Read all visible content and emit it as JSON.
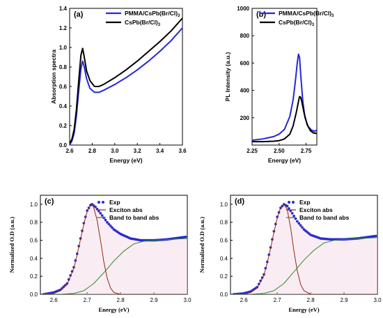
{
  "panels": [
    {
      "label": "(a)",
      "type": "line",
      "xlabel": "Energy (eV)",
      "ylabel": "Absorption spectra",
      "xlim": [
        2.6,
        3.6
      ],
      "ylim": [
        0.0,
        1.4
      ],
      "xticks": [
        "2.6",
        "2.8",
        "3.0",
        "3.2",
        "3.4",
        "3.6"
      ],
      "yticks": [
        "0.0",
        "0.2",
        "0.4",
        "0.6",
        "0.8",
        "1.0",
        "1.2",
        "1.4"
      ],
      "legend": [
        {
          "text": "PMMA/CsPb(Br/Cl)",
          "sub": "3",
          "color": "#2626d9"
        },
        {
          "text": "CsPb(Br/Cl)",
          "sub": "3",
          "color": "#000000"
        }
      ],
      "series": [
        {
          "name": "PMMA/CsPb(Br/Cl)3",
          "color": "#2626d9",
          "x": [
            2.6,
            2.62,
            2.64,
            2.66,
            2.68,
            2.7,
            2.715,
            2.73,
            2.75,
            2.78,
            2.82,
            2.86,
            2.9,
            3.0,
            3.1,
            3.2,
            3.3,
            3.4,
            3.5,
            3.6
          ],
          "y": [
            0.0,
            0.04,
            0.12,
            0.3,
            0.55,
            0.78,
            0.86,
            0.8,
            0.68,
            0.58,
            0.54,
            0.54,
            0.56,
            0.62,
            0.69,
            0.77,
            0.86,
            0.96,
            1.07,
            1.2
          ]
        },
        {
          "name": "CsPb(Br/Cl)3",
          "color": "#000000",
          "x": [
            2.6,
            2.62,
            2.64,
            2.66,
            2.68,
            2.7,
            2.715,
            2.73,
            2.75,
            2.78,
            2.82,
            2.86,
            2.9,
            3.0,
            3.1,
            3.2,
            3.3,
            3.4,
            3.5,
            3.6
          ],
          "y": [
            0.02,
            0.06,
            0.16,
            0.36,
            0.65,
            0.92,
            0.99,
            0.9,
            0.76,
            0.66,
            0.6,
            0.6,
            0.62,
            0.69,
            0.77,
            0.86,
            0.96,
            1.06,
            1.17,
            1.3
          ]
        }
      ]
    },
    {
      "label": "(b)",
      "type": "line",
      "xlabel": "Energy (eV)",
      "ylabel": "PL Intensity (a.u.)",
      "xlim": [
        2.25,
        2.85
      ],
      "ylim": [
        0,
        1000
      ],
      "xticks": [
        "2.25",
        "2.50",
        "2.75"
      ],
      "xtick_values": [
        2.25,
        2.5,
        2.75
      ],
      "yticks": [
        "200",
        "400",
        "600",
        "800",
        "1000"
      ],
      "ytick_values": [
        200,
        400,
        600,
        800,
        1000
      ],
      "legend": [
        {
          "text": "PMMA/CsPb(Br/Cl)",
          "sub": "3",
          "color": "#2626d9"
        },
        {
          "text": "CsPb(Br/Cl)",
          "sub": "3",
          "color": "#000000"
        }
      ],
      "series": [
        {
          "name": "PMMA/CsPb(Br/Cl)3",
          "color": "#2626d9",
          "x": [
            2.25,
            2.35,
            2.45,
            2.5,
            2.55,
            2.6,
            2.63,
            2.65,
            2.67,
            2.68,
            2.69,
            2.7,
            2.72,
            2.74,
            2.77,
            2.8,
            2.83,
            2.85
          ],
          "y": [
            35,
            45,
            62,
            80,
            115,
            210,
            330,
            460,
            610,
            665,
            640,
            520,
            320,
            200,
            135,
            110,
            100,
            110
          ]
        },
        {
          "name": "CsPb(Br/Cl)3",
          "color": "#000000",
          "x": [
            2.25,
            2.35,
            2.45,
            2.5,
            2.55,
            2.6,
            2.63,
            2.66,
            2.68,
            2.69,
            2.7,
            2.71,
            2.73,
            2.76,
            2.79,
            2.82,
            2.85
          ],
          "y": [
            25,
            25,
            28,
            32,
            45,
            80,
            140,
            240,
            320,
            355,
            350,
            320,
            240,
            150,
            105,
            88,
            85
          ]
        }
      ]
    },
    {
      "label": "(c)",
      "type": "line",
      "xlabel": "Energy (eV)",
      "ylabel": "Normalized O.D (a.u.)",
      "xlim": [
        2.56,
        3.0
      ],
      "ylim": [
        0.0,
        1.1
      ],
      "xticks": [
        "2.6",
        "2.7",
        "2.8",
        "2.9",
        "3.0"
      ],
      "yticks": [
        "0.0",
        "0.2",
        "0.4",
        "0.6",
        "0.8",
        "1.0"
      ],
      "legend": [
        {
          "text": "Exp",
          "color": "#2a2ae6",
          "marker": "dot"
        },
        {
          "text": "Exciton abs",
          "color": "#8b2a10"
        },
        {
          "text": "Band to band abs",
          "color": "#2e8b2e"
        }
      ],
      "series": [
        {
          "name": "Exp",
          "color": "#2a2ae6",
          "marker": "dot",
          "x": [
            2.57,
            2.6,
            2.62,
            2.64,
            2.66,
            2.67,
            2.68,
            2.69,
            2.7,
            2.71,
            2.715,
            2.725,
            2.74,
            2.76,
            2.78,
            2.8,
            2.83,
            2.86,
            2.9,
            2.94,
            2.98,
            3.0
          ],
          "y": [
            0.0,
            0.02,
            0.05,
            0.12,
            0.3,
            0.45,
            0.62,
            0.79,
            0.93,
            0.99,
            1.0,
            0.97,
            0.9,
            0.8,
            0.72,
            0.67,
            0.62,
            0.6,
            0.6,
            0.61,
            0.63,
            0.64
          ]
        },
        {
          "name": "Exciton abs",
          "color": "#8b2a10",
          "x": [
            2.57,
            2.6,
            2.62,
            2.64,
            2.66,
            2.67,
            2.68,
            2.69,
            2.7,
            2.71,
            2.715,
            2.72,
            2.73,
            2.74,
            2.75,
            2.76,
            2.77,
            2.78,
            2.8,
            2.85,
            3.0
          ],
          "y": [
            0.0,
            0.01,
            0.04,
            0.11,
            0.29,
            0.44,
            0.61,
            0.78,
            0.92,
            0.99,
            1.0,
            0.96,
            0.82,
            0.6,
            0.36,
            0.18,
            0.07,
            0.02,
            0.0,
            0.0,
            0.0
          ]
        },
        {
          "name": "Band to band abs",
          "color": "#2e8b2e",
          "x": [
            2.57,
            2.62,
            2.66,
            2.69,
            2.72,
            2.75,
            2.78,
            2.81,
            2.84,
            2.87,
            2.9,
            2.95,
            3.0
          ],
          "y": [
            0.0,
            0.0,
            0.01,
            0.04,
            0.12,
            0.24,
            0.37,
            0.48,
            0.56,
            0.59,
            0.6,
            0.61,
            0.62
          ]
        }
      ]
    },
    {
      "label": "(d)",
      "type": "line",
      "xlabel": "Energy (eV)",
      "ylabel": "Normalized O.D (a.u.)",
      "xlim": [
        2.56,
        3.0
      ],
      "ylim": [
        0.0,
        1.1
      ],
      "xticks": [
        "2.6",
        "2.7",
        "2.8",
        "2.9",
        "3.0"
      ],
      "yticks": [
        "0.0",
        "0.2",
        "0.4",
        "0.6",
        "0.8",
        "1.0"
      ],
      "legend": [
        {
          "text": "Exp",
          "color": "#2a2ae6",
          "marker": "dot"
        },
        {
          "text": "Exciton abs",
          "color": "#8b2a10"
        },
        {
          "text": "Band to band abs",
          "color": "#2e8b2e"
        }
      ],
      "series": [
        {
          "name": "Exp",
          "color": "#2a2ae6",
          "marker": "dot",
          "x": [
            2.57,
            2.6,
            2.62,
            2.64,
            2.66,
            2.67,
            2.68,
            2.69,
            2.7,
            2.71,
            2.72,
            2.73,
            2.745,
            2.76,
            2.78,
            2.8,
            2.83,
            2.86,
            2.9,
            2.94,
            2.98,
            3.0
          ],
          "y": [
            0.0,
            0.01,
            0.03,
            0.08,
            0.22,
            0.36,
            0.52,
            0.7,
            0.86,
            0.96,
            1.0,
            0.98,
            0.9,
            0.81,
            0.72,
            0.66,
            0.62,
            0.61,
            0.61,
            0.62,
            0.64,
            0.65
          ]
        },
        {
          "name": "Exciton abs",
          "color": "#8b2a10",
          "x": [
            2.57,
            2.6,
            2.62,
            2.64,
            2.66,
            2.67,
            2.68,
            2.69,
            2.7,
            2.71,
            2.72,
            2.73,
            2.74,
            2.75,
            2.76,
            2.77,
            2.78,
            2.8,
            2.85,
            3.0
          ],
          "y": [
            0.0,
            0.0,
            0.02,
            0.07,
            0.21,
            0.35,
            0.51,
            0.69,
            0.85,
            0.96,
            1.0,
            0.94,
            0.74,
            0.48,
            0.26,
            0.11,
            0.04,
            0.0,
            0.0,
            0.0
          ]
        },
        {
          "name": "Band to band abs",
          "color": "#2e8b2e",
          "x": [
            2.57,
            2.62,
            2.66,
            2.69,
            2.72,
            2.75,
            2.78,
            2.81,
            2.84,
            2.87,
            2.9,
            2.95,
            3.0
          ],
          "y": [
            0.0,
            0.0,
            0.01,
            0.04,
            0.12,
            0.25,
            0.38,
            0.49,
            0.57,
            0.6,
            0.61,
            0.62,
            0.63
          ]
        }
      ]
    }
  ],
  "chart_data": [
    {
      "type": "line",
      "title": "(a)",
      "xlabel": "Energy (eV)",
      "ylabel": "Absorption spectra",
      "xlim": [
        2.6,
        3.6
      ],
      "ylim": [
        0.0,
        1.4
      ],
      "series": [
        "PMMA/CsPb(Br/Cl)3",
        "CsPb(Br/Cl)3"
      ]
    },
    {
      "type": "line",
      "title": "(b)",
      "xlabel": "Energy (eV)",
      "ylabel": "PL Intensity (a.u.)",
      "xlim": [
        2.25,
        2.85
      ],
      "ylim": [
        0,
        1000
      ],
      "series": [
        "PMMA/CsPb(Br/Cl)3",
        "CsPb(Br/Cl)3"
      ]
    },
    {
      "type": "line",
      "title": "(c)",
      "xlabel": "Energy (eV)",
      "ylabel": "Normalized O.D (a.u.)",
      "xlim": [
        2.56,
        3.0
      ],
      "ylim": [
        0.0,
        1.1
      ],
      "series": [
        "Exp",
        "Exciton abs",
        "Band to band abs"
      ]
    },
    {
      "type": "line",
      "title": "(d)",
      "xlabel": "Energy (eV)",
      "ylabel": "Normalized O.D (a.u.)",
      "xlim": [
        2.56,
        3.0
      ],
      "ylim": [
        0.0,
        1.1
      ],
      "series": [
        "Exp",
        "Exciton abs",
        "Band to band abs"
      ]
    }
  ]
}
